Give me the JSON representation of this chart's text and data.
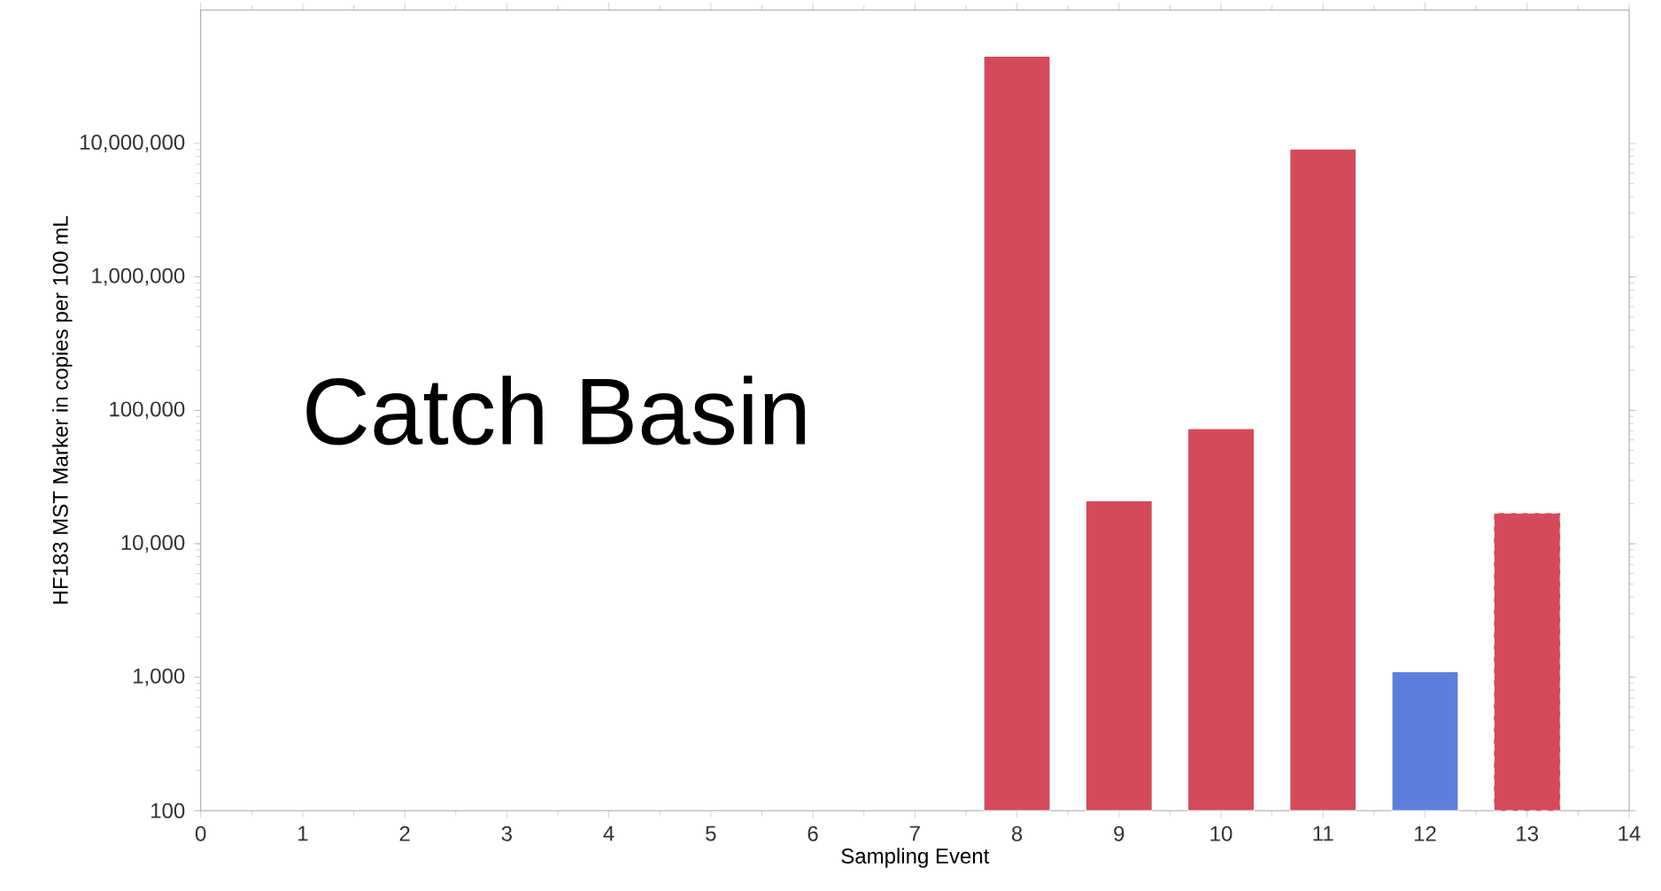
{
  "chart_data": {
    "type": "bar",
    "xlabel": "Sampling Event",
    "ylabel": "HF183 MST Marker in copies per 100 mL",
    "x": [
      8,
      9,
      10,
      11,
      12,
      13
    ],
    "values": [
      45000000,
      21000,
      73000,
      9100000,
      1100,
      17000
    ],
    "colors": [
      "#d44a5a",
      "#d44a5a",
      "#d44a5a",
      "#d44a5a",
      "#5b7fdc",
      "#d44a5a"
    ],
    "xlim": [
      0,
      14
    ],
    "xticks": [
      0,
      1,
      2,
      3,
      4,
      5,
      6,
      7,
      8,
      9,
      10,
      11,
      12,
      13,
      14
    ],
    "ylim": [
      100,
      100000000
    ],
    "yticks": [
      {
        "value": 100,
        "label": "100"
      },
      {
        "value": 1000,
        "label": "1,000"
      },
      {
        "value": 10000,
        "label": "10,000"
      },
      {
        "value": 100000,
        "label": "100,000"
      },
      {
        "value": 1000000,
        "label": "1,000,000"
      },
      {
        "value": 10000000,
        "label": "10,000,000"
      }
    ],
    "log": "y",
    "annotations": [
      "Catch Basin"
    ]
  }
}
